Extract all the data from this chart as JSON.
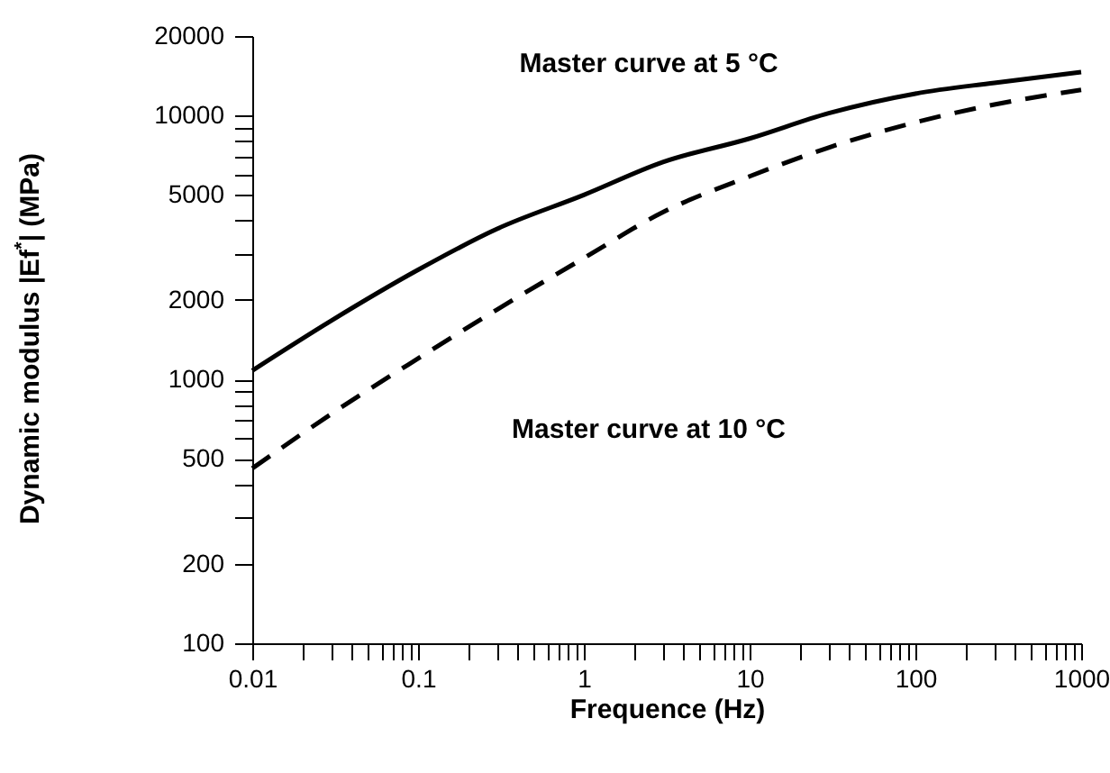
{
  "chart_data": {
    "type": "line",
    "xlabel": "Frequence (Hz)",
    "ylabel": "Dynamic modulus |Ef$^{*}$| (MPa)",
    "log": "xy",
    "marker": "none",
    "grid": false,
    "x": [
      0.01,
      0.03,
      0.1,
      0.3,
      1,
      3,
      10,
      30,
      100,
      300,
      1000
    ],
    "series": [
      {
        "color": "#000000",
        "line_style": "solid",
        "values": [
          1080,
          1670,
          2600,
          3720,
          5000,
          6660,
          8180,
          10200,
          12100,
          13300,
          14600
        ]
      },
      {
        "color": "#000000",
        "line_style": "dashed",
        "values": [
          460,
          740,
          1200,
          1840,
          2880,
          4300,
          5880,
          7560,
          9420,
          11000,
          12500
        ]
      }
    ],
    "xlim": [
      0.01,
      1000
    ],
    "xticks": [
      0.01,
      {
        "value": 0.02,
        "label": null
      },
      {
        "value": 0.03,
        "label": null
      },
      {
        "value": 0.04,
        "label": null
      },
      {
        "value": 0.05,
        "label": null
      },
      {
        "value": 0.06,
        "label": null
      },
      {
        "value": 0.07,
        "label": null
      },
      {
        "value": 0.08,
        "label": null
      },
      {
        "value": 0.09,
        "label": null
      },
      0.1,
      {
        "value": 0.2,
        "label": null
      },
      {
        "value": 0.3,
        "label": null
      },
      {
        "value": 0.4,
        "label": null
      },
      {
        "value": 0.5,
        "label": null
      },
      {
        "value": 0.6,
        "label": null
      },
      {
        "value": 0.7,
        "label": null
      },
      {
        "value": 0.8,
        "label": null
      },
      {
        "value": 0.9,
        "label": null
      },
      1,
      {
        "value": 2,
        "label": null
      },
      {
        "value": 3,
        "label": null
      },
      {
        "value": 4,
        "label": null
      },
      {
        "value": 5,
        "label": null
      },
      {
        "value": 6,
        "label": null
      },
      {
        "value": 7,
        "label": null
      },
      {
        "value": 8,
        "label": null
      },
      {
        "value": 9,
        "label": null
      },
      10,
      {
        "value": 20,
        "label": null
      },
      {
        "value": 30,
        "label": null
      },
      {
        "value": 40,
        "label": null
      },
      {
        "value": 50,
        "label": null
      },
      {
        "value": 60,
        "label": null
      },
      {
        "value": 70,
        "label": null
      },
      {
        "value": 80,
        "label": null
      },
      {
        "value": 90,
        "label": null
      },
      100,
      {
        "value": 200,
        "label": null
      },
      {
        "value": 300,
        "label": null
      },
      {
        "value": 400,
        "label": null
      },
      {
        "value": 500,
        "label": null
      },
      {
        "value": 600,
        "label": null
      },
      {
        "value": 700,
        "label": null
      },
      {
        "value": 800,
        "label": null
      },
      {
        "value": 900,
        "label": null
      },
      1000
    ],
    "ylim": [
      100,
      20000
    ],
    "yticks": [
      100,
      200,
      {
        "value": 300,
        "label": null
      },
      {
        "value": 400,
        "label": null
      },
      500,
      {
        "value": 600,
        "label": null
      },
      {
        "value": 700,
        "label": null
      },
      {
        "value": 800,
        "label": null
      },
      {
        "value": 900,
        "label": null
      },
      1000,
      2000,
      {
        "value": 3000,
        "label": null
      },
      {
        "value": 4000,
        "label": null
      },
      5000,
      {
        "value": 6000,
        "label": null
      },
      {
        "value": 7000,
        "label": null
      },
      {
        "value": 8000,
        "label": null
      },
      {
        "value": 9000,
        "label": null
      },
      10000,
      20000
    ],
    "annotations": [
      "Master curve at 5 °C",
      "Master curve at 10 °C"
    ]
  }
}
